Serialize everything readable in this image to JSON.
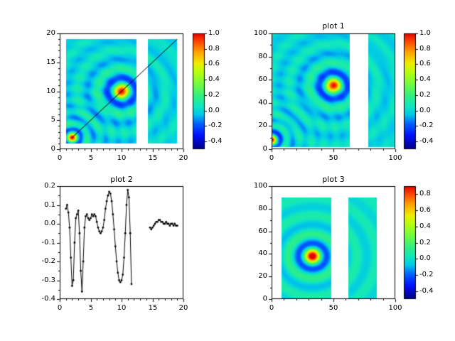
{
  "figure": {
    "background": "#ffffff"
  },
  "colormap": {
    "stops": [
      [
        0.0,
        "#000080"
      ],
      [
        0.12,
        "#0010ff"
      ],
      [
        0.22,
        "#0060ff"
      ],
      [
        0.3,
        "#00c8e8"
      ],
      [
        0.37,
        "#10e6c0"
      ],
      [
        0.46,
        "#30f080"
      ],
      [
        0.56,
        "#70fa40"
      ],
      [
        0.66,
        "#b4ff10"
      ],
      [
        0.74,
        "#eeee00"
      ],
      [
        0.84,
        "#ffa000"
      ],
      [
        0.92,
        "#ff5000"
      ],
      [
        1.0,
        "#e60000"
      ]
    ]
  },
  "chart_data": [
    {
      "id": "tl",
      "type": "heatmap",
      "title": "",
      "xlim": [
        0,
        20
      ],
      "ylim": [
        0,
        20
      ],
      "xticks": [
        "0",
        "5",
        "10",
        "15",
        "20"
      ],
      "yticks": [
        "0",
        "5",
        "10",
        "15",
        "20"
      ],
      "xminor": 1,
      "yminor": 1,
      "vmin": -0.5,
      "vmax": 1.0,
      "colorbar_ticks": [
        "1.0",
        "0.8",
        "0.6",
        "0.4",
        "0.2",
        "0.0",
        "-0.2",
        "-0.4"
      ],
      "data_extent": {
        "x0": 1,
        "x1": 19,
        "y0": 1,
        "y1": 19
      },
      "gap_x": [
        12.4,
        14.3
      ],
      "peaks": [
        {
          "x": 10,
          "y": 10,
          "amp": 1.0,
          "width": 1.6
        },
        {
          "x": 2,
          "y": 2,
          "amp": 1.0,
          "width": 1.0
        }
      ],
      "line_overlay": {
        "x0": 2,
        "y0": 2,
        "x1": 19,
        "y1": 19,
        "color": "#000000"
      }
    },
    {
      "id": "tr",
      "type": "heatmap",
      "title": "plot 1",
      "xlim": [
        0,
        100
      ],
      "ylim": [
        0,
        100
      ],
      "xticks": [
        "0",
        "50",
        "100"
      ],
      "yticks": [
        "0",
        "20",
        "40",
        "60",
        "80",
        "100"
      ],
      "xminor": 10,
      "yminor": 10,
      "vmin": -0.5,
      "vmax": 1.0,
      "colorbar_ticks": [
        "1.0",
        "0.8",
        "0.6",
        "0.4",
        "0.2",
        "0.0",
        "-0.2",
        "-0.4"
      ],
      "data_extent": {
        "x0": 0,
        "x1": 100,
        "y0": 2,
        "y1": 100
      },
      "gap_x": [
        63,
        78
      ],
      "peaks": [
        {
          "x": 50,
          "y": 55,
          "amp": 1.0,
          "width": 8
        },
        {
          "x": 0,
          "y": 8,
          "amp": 1.0,
          "width": 5
        }
      ]
    },
    {
      "id": "bl",
      "type": "line",
      "title": "plot 2",
      "xlim": [
        0,
        20
      ],
      "ylim": [
        -0.4,
        0.2
      ],
      "xticks": [
        "0",
        "5",
        "10",
        "15",
        "20"
      ],
      "yticks": [
        "0.2",
        "0.1",
        "0.0",
        "-0.1",
        "-0.2",
        "-0.3",
        "-0.4"
      ],
      "xminor": 1,
      "yminor": 0.05,
      "line_color": "#000000",
      "marker": "dot",
      "series": [
        {
          "x": [
            1.0,
            1.2,
            1.4,
            1.6,
            1.8,
            2.0,
            2.2,
            2.4,
            2.6,
            2.8,
            3.0,
            3.2,
            3.4,
            3.6,
            3.8,
            4.0,
            4.2,
            4.4,
            4.6,
            4.8,
            5.0,
            5.2,
            5.4,
            5.6,
            5.8,
            6.0,
            6.2,
            6.4,
            6.6,
            6.8,
            7.0,
            7.2,
            7.4,
            7.6,
            7.8,
            8.0,
            8.2,
            8.4,
            8.6,
            8.8,
            9.0,
            9.2,
            9.4,
            9.6,
            9.8,
            10.0,
            10.2,
            10.4,
            10.6,
            10.8,
            11.0,
            11.2,
            11.4,
            11.6
          ],
          "y": [
            0.08,
            0.1,
            0.06,
            -0.02,
            -0.18,
            -0.33,
            -0.3,
            -0.1,
            0.03,
            0.05,
            0.07,
            -0.05,
            -0.25,
            -0.36,
            -0.2,
            -0.02,
            0.04,
            0.05,
            0.03,
            0.02,
            0.03,
            0.05,
            0.04,
            0.05,
            0.04,
            0.01,
            -0.02,
            -0.04,
            -0.05,
            -0.04,
            -0.02,
            0.02,
            0.08,
            0.12,
            0.15,
            0.17,
            0.16,
            0.12,
            0.05,
            -0.03,
            -0.12,
            -0.2,
            -0.26,
            -0.3,
            -0.31,
            -0.3,
            -0.27,
            -0.18,
            -0.05,
            0.1,
            0.18,
            0.14,
            -0.05,
            -0.32
          ]
        },
        {
          "x": [
            14.6,
            14.8,
            15.0,
            15.2,
            15.4,
            15.6,
            15.8,
            16.0,
            16.2,
            16.4,
            16.6,
            16.8,
            17.0,
            17.2,
            17.4,
            17.6,
            17.8,
            18.0,
            18.2,
            18.4,
            18.6,
            18.8,
            19.0
          ],
          "y": [
            -0.02,
            -0.03,
            -0.02,
            -0.01,
            0.0,
            0.01,
            0.01,
            0.02,
            0.02,
            0.01,
            0.01,
            0.0,
            0.0,
            0.01,
            0.0,
            0.0,
            -0.01,
            0.0,
            0.0,
            -0.01,
            0.0,
            -0.01,
            -0.01
          ]
        }
      ]
    },
    {
      "id": "br",
      "type": "heatmap",
      "title": "plot 3",
      "xlim": [
        0,
        100
      ],
      "ylim": [
        0,
        100
      ],
      "xticks": [
        "0",
        "50",
        "100"
      ],
      "yticks": [
        "0",
        "20",
        "40",
        "60",
        "80",
        "100"
      ],
      "xminor": 10,
      "yminor": 10,
      "vmin": -0.5,
      "vmax": 0.9,
      "colorbar_ticks": [
        "0.8",
        "0.6",
        "0.4",
        "0.2",
        "0.0",
        "-0.2",
        "-0.4"
      ],
      "data_extent": {
        "x0": 8,
        "x1": 85,
        "y0": 0,
        "y1": 90
      },
      "gap_x": [
        48,
        62
      ],
      "peaks": [
        {
          "x": 33,
          "y": 38,
          "amp": 1.0,
          "width": 8
        }
      ]
    }
  ]
}
